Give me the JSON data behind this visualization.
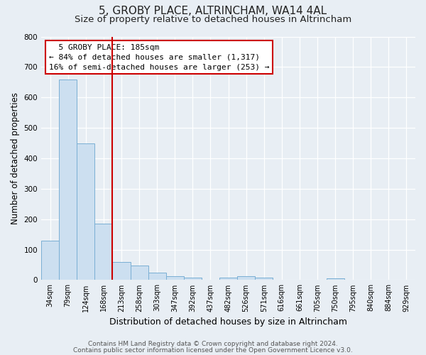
{
  "title": "5, GROBY PLACE, ALTRINCHAM, WA14 4AL",
  "subtitle": "Size of property relative to detached houses in Altrincham",
  "xlabel": "Distribution of detached houses by size in Altrincham",
  "ylabel": "Number of detached properties",
  "bar_labels": [
    "34sqm",
    "79sqm",
    "124sqm",
    "168sqm",
    "213sqm",
    "258sqm",
    "303sqm",
    "347sqm",
    "392sqm",
    "437sqm",
    "482sqm",
    "526sqm",
    "571sqm",
    "616sqm",
    "661sqm",
    "705sqm",
    "750sqm",
    "795sqm",
    "840sqm",
    "884sqm",
    "929sqm"
  ],
  "bar_values": [
    130,
    660,
    450,
    185,
    60,
    48,
    25,
    13,
    7,
    0,
    8,
    12,
    7,
    0,
    0,
    0,
    5,
    0,
    0,
    0,
    2
  ],
  "bar_color": "#ccdff0",
  "bar_edge_color": "#7aafd4",
  "vline_x": 3.5,
  "vline_color": "#cc0000",
  "annotation_title": "5 GROBY PLACE: 185sqm",
  "annotation_line1": "← 84% of detached houses are smaller (1,317)",
  "annotation_line2": "16% of semi-detached houses are larger (253) →",
  "annotation_box_color": "#ffffff",
  "annotation_box_edge": "#cc0000",
  "ylim": [
    0,
    800
  ],
  "yticks": [
    0,
    100,
    200,
    300,
    400,
    500,
    600,
    700,
    800
  ],
  "footnote1": "Contains HM Land Registry data © Crown copyright and database right 2024.",
  "footnote2": "Contains public sector information licensed under the Open Government Licence v3.0.",
  "bg_color": "#e8eef4",
  "plot_bg_color": "#e8eef4",
  "title_fontsize": 11,
  "subtitle_fontsize": 9.5,
  "xlabel_fontsize": 9,
  "ylabel_fontsize": 8.5,
  "footnote_fontsize": 6.5
}
